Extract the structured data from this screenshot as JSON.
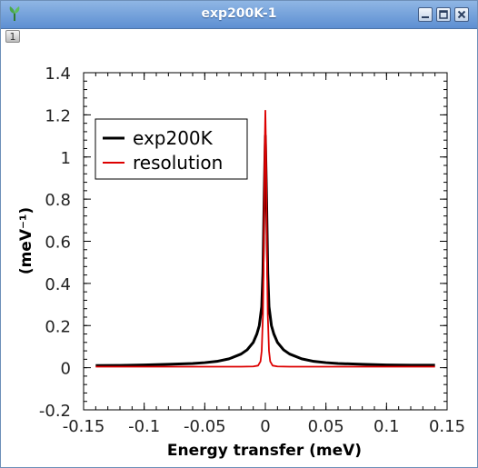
{
  "window": {
    "title": "exp200K-1",
    "tab_label": "1"
  },
  "chart_data": {
    "type": "line",
    "xlabel": "Energy transfer (meV)",
    "ylabel": "(meV⁻¹)",
    "xlim": [
      -0.15,
      0.15
    ],
    "ylim": [
      -0.2,
      1.4
    ],
    "xticks": [
      -0.15,
      -0.1,
      -0.05,
      0,
      0.05,
      0.1,
      0.15
    ],
    "xtick_labels": [
      "-0.15",
      "-0.1",
      "-0.05",
      "0",
      "0.05",
      "0.1",
      "0.15"
    ],
    "yticks": [
      -0.2,
      0,
      0.2,
      0.4,
      0.6,
      0.8,
      1,
      1.2,
      1.4
    ],
    "ytick_labels": [
      "-0.2",
      "0",
      "0.2",
      "0.4",
      "0.6",
      "0.8",
      "1",
      "1.2",
      "1.4"
    ],
    "grid": false,
    "legend": {
      "position": "upper-left"
    },
    "series": [
      {
        "name": "exp200K",
        "color": "#000000",
        "x": [
          -0.14,
          -0.12,
          -0.1,
          -0.08,
          -0.06,
          -0.05,
          -0.04,
          -0.03,
          -0.02,
          -0.015,
          -0.01,
          -0.007,
          -0.005,
          -0.003,
          -0.002,
          -0.001,
          0,
          0.001,
          0.002,
          0.003,
          0.005,
          0.007,
          0.01,
          0.015,
          0.02,
          0.03,
          0.04,
          0.05,
          0.06,
          0.08,
          0.1,
          0.12,
          0.14
        ],
        "y": [
          0.01,
          0.011,
          0.013,
          0.016,
          0.02,
          0.024,
          0.03,
          0.042,
          0.065,
          0.085,
          0.12,
          0.16,
          0.2,
          0.29,
          0.45,
          0.8,
          1.1,
          0.8,
          0.45,
          0.29,
          0.2,
          0.16,
          0.12,
          0.085,
          0.065,
          0.042,
          0.03,
          0.024,
          0.02,
          0.016,
          0.013,
          0.012,
          0.012
        ]
      },
      {
        "name": "resolution",
        "color": "#dd0000",
        "x": [
          -0.14,
          -0.05,
          -0.02,
          -0.01,
          -0.006,
          -0.004,
          -0.003,
          -0.002,
          -0.0015,
          -0.001,
          -0.0005,
          0,
          0.0005,
          0.001,
          0.0015,
          0.002,
          0.003,
          0.004,
          0.006,
          0.01,
          0.02,
          0.05,
          0.14
        ],
        "y": [
          0.005,
          0.005,
          0.005,
          0.006,
          0.01,
          0.03,
          0.08,
          0.25,
          0.45,
          0.75,
          1.05,
          1.22,
          1.05,
          0.75,
          0.45,
          0.25,
          0.08,
          0.03,
          0.01,
          0.006,
          0.005,
          0.005,
          0.005
        ]
      }
    ]
  }
}
